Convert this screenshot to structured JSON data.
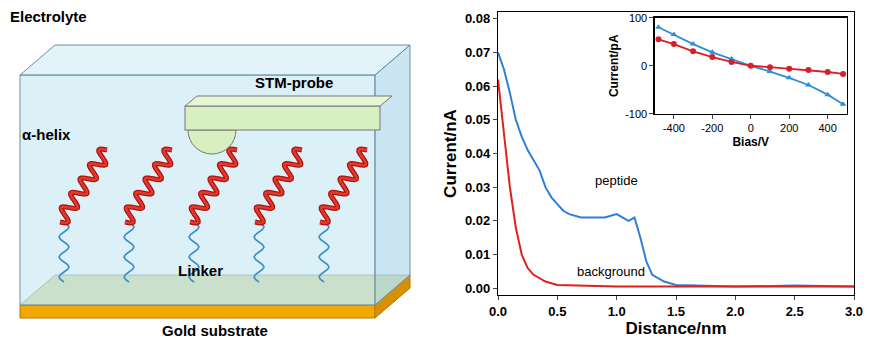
{
  "diagram": {
    "title": "Electrolyte",
    "probe": "STM-probe",
    "molecule": "α-helix",
    "linker": "Linker",
    "substrate": "Gold substrate"
  },
  "chart_data": [
    {
      "type": "line",
      "xlabel": "Distance/nm",
      "ylabel": "Current/nA",
      "xlim": [
        0,
        3
      ],
      "xticks": [
        {
          "value": 0,
          "label": "0.0"
        },
        {
          "value": 0.5,
          "label": "0.5"
        },
        {
          "value": 1,
          "label": "1.0"
        },
        {
          "value": 1.5,
          "label": "1.5"
        },
        {
          "value": 2,
          "label": "2.0"
        },
        {
          "value": 2.5,
          "label": "2.5"
        },
        {
          "value": 3,
          "label": "3.0"
        }
      ],
      "ylim": [
        -0.002,
        0.082
      ],
      "yticks": [
        {
          "value": 0,
          "label": "0.00"
        },
        {
          "value": 0.01,
          "label": "0.01"
        },
        {
          "value": 0.02,
          "label": "0.02"
        },
        {
          "value": 0.03,
          "label": "0.03"
        },
        {
          "value": 0.04,
          "label": "0.04"
        },
        {
          "value": 0.05,
          "label": "0.05"
        },
        {
          "value": 0.06,
          "label": "0.06"
        },
        {
          "value": 0.07,
          "label": "0.07"
        },
        {
          "value": 0.08,
          "label": "0.08"
        }
      ],
      "grid": false,
      "series": [
        {
          "name": "peptide",
          "color": "#2f7fd6",
          "x": [
            0,
            0.05,
            0.1,
            0.15,
            0.2,
            0.25,
            0.3,
            0.35,
            0.4,
            0.45,
            0.5,
            0.55,
            0.6,
            0.7,
            0.8,
            0.9,
            1.0,
            1.1,
            1.15,
            1.2,
            1.25,
            1.3,
            1.4,
            1.5,
            2.0,
            2.5,
            3.0
          ],
          "values": [
            0.07,
            0.065,
            0.058,
            0.05,
            0.045,
            0.041,
            0.038,
            0.035,
            0.03,
            0.027,
            0.025,
            0.023,
            0.022,
            0.021,
            0.021,
            0.021,
            0.022,
            0.02,
            0.021,
            0.015,
            0.008,
            0.004,
            0.002,
            0.001,
            0.0005,
            0.0008,
            0.0005
          ]
        },
        {
          "name": "background",
          "color": "#e0201b",
          "x": [
            0,
            0.05,
            0.1,
            0.15,
            0.2,
            0.25,
            0.3,
            0.4,
            0.5,
            1.0,
            2.0,
            3.0
          ],
          "values": [
            0.062,
            0.045,
            0.03,
            0.018,
            0.01,
            0.006,
            0.004,
            0.002,
            0.001,
            0.0005,
            0.0005,
            0.0005
          ]
        }
      ],
      "annotations": [
        {
          "text": "peptide",
          "x": 1.0,
          "y": 0.032
        },
        {
          "text": "background",
          "x": 0.95,
          "y": 0.005
        }
      ]
    },
    {
      "type": "line",
      "xlabel": "Bias/V",
      "ylabel": "Current/pA",
      "xlim": [
        -500,
        500
      ],
      "xticks": [
        -400,
        -200,
        0,
        200,
        400
      ],
      "ylim": [
        -100,
        100
      ],
      "yticks": [
        -100,
        0,
        100
      ],
      "grid": false,
      "series": [
        {
          "color": "#2f8fd6",
          "marker": "triangle",
          "x": [
            -480,
            -400,
            -300,
            -200,
            -100,
            0,
            100,
            200,
            300,
            400,
            480
          ],
          "values": [
            80,
            65,
            45,
            28,
            14,
            0,
            -12,
            -25,
            -40,
            -60,
            -80
          ]
        },
        {
          "color": "#d6202a",
          "marker": "circle",
          "x": [
            -480,
            -400,
            -300,
            -200,
            -100,
            0,
            100,
            200,
            300,
            400,
            480
          ],
          "values": [
            55,
            45,
            30,
            18,
            8,
            0,
            -3,
            -6,
            -9,
            -13,
            -17
          ]
        }
      ]
    }
  ]
}
